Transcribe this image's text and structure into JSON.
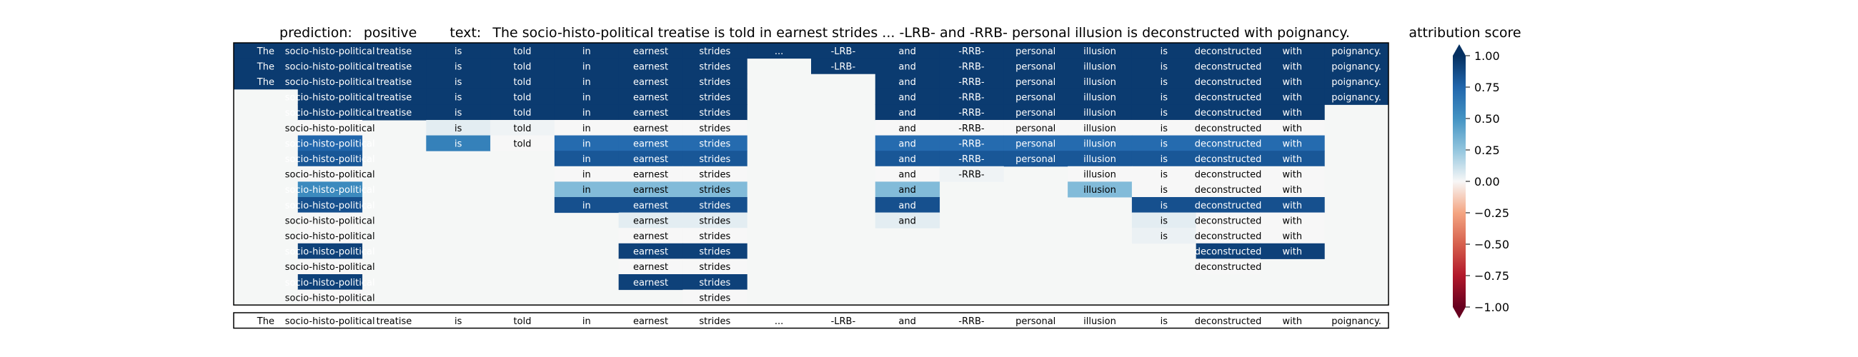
{
  "chart_data": {
    "type": "heatmap",
    "title_prefix": "prediction:",
    "prediction": "positive",
    "text_prefix": "text:",
    "text": "The socio-histo-political treatise is told in earnest strides ... -LRB- and -RRB- personal illusion is deconstructed with poignancy.",
    "tokens": [
      "The",
      "socio-histo-political",
      "treatise",
      "is",
      "told",
      "in",
      "earnest",
      "strides",
      "...",
      "-LRB-",
      "and",
      "-RRB-",
      "personal",
      "illusion",
      "is",
      "deconstructed",
      "with",
      "poignancy."
    ],
    "rows": [
      [
        0.95,
        0.95,
        0.95,
        0.95,
        0.95,
        0.95,
        0.95,
        0.95,
        0.95,
        0.95,
        0.95,
        0.95,
        0.95,
        0.95,
        0.95,
        0.95,
        0.95,
        0.95
      ],
      [
        0.95,
        0.95,
        0.95,
        0.95,
        0.95,
        0.95,
        0.95,
        0.95,
        null,
        0.95,
        0.95,
        0.95,
        0.95,
        0.95,
        0.95,
        0.95,
        0.95,
        0.95
      ],
      [
        0.95,
        0.95,
        0.95,
        0.95,
        0.95,
        0.95,
        0.95,
        0.95,
        null,
        null,
        0.95,
        0.95,
        0.95,
        0.95,
        0.95,
        0.95,
        0.95,
        0.95
      ],
      [
        null,
        0.95,
        0.95,
        0.95,
        0.95,
        0.95,
        0.95,
        0.95,
        null,
        null,
        0.95,
        0.95,
        0.95,
        0.95,
        0.95,
        0.95,
        0.95,
        0.95
      ],
      [
        null,
        0.95,
        0.95,
        0.95,
        0.95,
        0.95,
        0.95,
        0.95,
        null,
        null,
        0.95,
        0.95,
        0.95,
        0.95,
        0.95,
        0.95,
        0.95,
        null
      ],
      [
        null,
        0.0,
        null,
        0.05,
        0.02,
        0.0,
        0.0,
        0.0,
        null,
        null,
        0.0,
        0.0,
        0.0,
        0.0,
        0.0,
        0.0,
        0.0,
        null
      ],
      [
        null,
        0.75,
        null,
        0.6,
        0.0,
        0.72,
        0.72,
        0.72,
        null,
        null,
        0.72,
        0.72,
        0.72,
        0.72,
        0.72,
        0.72,
        0.72,
        null
      ],
      [
        null,
        0.82,
        null,
        null,
        null,
        0.82,
        0.82,
        0.82,
        null,
        null,
        0.82,
        0.82,
        0.82,
        0.82,
        0.82,
        0.82,
        0.82,
        null
      ],
      [
        null,
        0.0,
        null,
        null,
        null,
        0.0,
        0.0,
        0.0,
        null,
        null,
        0.0,
        0.02,
        null,
        0.0,
        0.0,
        0.0,
        0.0,
        null
      ],
      [
        null,
        0.55,
        null,
        null,
        null,
        0.3,
        0.3,
        0.3,
        null,
        null,
        0.3,
        null,
        null,
        0.3,
        0.0,
        0.0,
        0.0,
        null
      ],
      [
        null,
        0.85,
        null,
        null,
        null,
        0.85,
        0.85,
        0.85,
        null,
        null,
        0.85,
        null,
        null,
        null,
        0.85,
        0.85,
        0.85,
        null
      ],
      [
        null,
        0.0,
        null,
        null,
        null,
        null,
        0.05,
        0.05,
        null,
        null,
        0.05,
        null,
        null,
        null,
        0.05,
        0.0,
        0.0,
        null
      ],
      [
        null,
        0.0,
        null,
        null,
        null,
        null,
        0.0,
        0.0,
        null,
        null,
        null,
        null,
        null,
        null,
        0.03,
        0.0,
        0.0,
        null
      ],
      [
        null,
        0.92,
        null,
        null,
        null,
        null,
        0.92,
        0.92,
        null,
        null,
        null,
        null,
        null,
        null,
        null,
        0.92,
        0.92,
        null
      ],
      [
        null,
        0.0,
        null,
        null,
        null,
        null,
        0.0,
        0.0,
        null,
        null,
        null,
        null,
        null,
        null,
        null,
        0.0,
        null,
        null
      ],
      [
        null,
        0.92,
        null,
        null,
        null,
        null,
        0.92,
        0.92,
        null,
        null,
        null,
        null,
        null,
        null,
        null,
        null,
        null,
        null
      ],
      [
        null,
        0.0,
        null,
        null,
        null,
        null,
        null,
        0.0,
        null,
        null,
        null,
        null,
        null,
        null,
        null,
        null,
        null,
        null
      ]
    ],
    "colorbar": {
      "label": "attribution score",
      "range": [
        -1.0,
        1.0
      ],
      "ticks": [
        "1.00",
        "0.75",
        "0.50",
        "0.25",
        "0.00",
        "−0.25",
        "−0.50",
        "−0.75",
        "−1.00"
      ],
      "tick_values": [
        1.0,
        0.75,
        0.5,
        0.25,
        0.0,
        -0.25,
        -0.5,
        -0.75,
        -1.0
      ],
      "colormap": "RdBu"
    },
    "grid": false,
    "legend_placement": "right"
  }
}
